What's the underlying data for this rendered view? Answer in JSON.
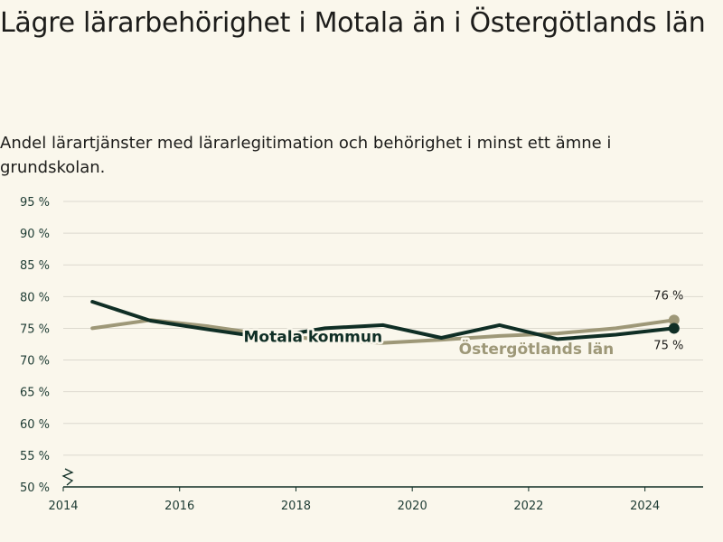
{
  "title": "Lägre lärarbehörighet i Motala än i Östergötlands län",
  "subtitle": "Andel lärartjänster med lärarlegitimation och behörighet i minst ett ämne i grundskolan.",
  "chart_data": {
    "type": "line",
    "ylim": [
      50,
      95
    ],
    "yticks": [
      50,
      55,
      60,
      65,
      70,
      75,
      80,
      85,
      90,
      95
    ],
    "ytick_labels": [
      "50 %",
      "55 %",
      "60 %",
      "65 %",
      "70 %",
      "75 %",
      "80 %",
      "85 %",
      "90 %",
      "95 %"
    ],
    "xlim": [
      2014,
      2025
    ],
    "xticks": [
      2014,
      2016,
      2018,
      2020,
      2022,
      2024
    ],
    "xtick_labels": [
      "2014",
      "2016",
      "2018",
      "2020",
      "2022",
      "2024"
    ],
    "grid": true,
    "axis_break": true,
    "series": [
      {
        "name": "Motala kommun",
        "color": "#0f2e25",
        "x": [
          2014.5,
          2015.5,
          2016.5,
          2017.5,
          2018.5,
          2019.5,
          2020.5,
          2021.5,
          2022.5,
          2023.5,
          2024.5
        ],
        "values": [
          79.2,
          76.2,
          74.8,
          73.5,
          75.0,
          75.5,
          73.5,
          75.5,
          73.3,
          74.0,
          75.0
        ],
        "end_label": "75 %"
      },
      {
        "name": "Östergötlands län",
        "color": "#9e9878",
        "x": [
          2014.5,
          2015.5,
          2016.5,
          2017.5,
          2018.5,
          2019.5,
          2020.5,
          2021.5,
          2022.5,
          2023.5,
          2024.5
        ],
        "values": [
          75.0,
          76.3,
          75.3,
          74.0,
          73.2,
          72.7,
          73.2,
          73.8,
          74.2,
          75.0,
          76.3
        ],
        "end_label": "76 %"
      }
    ]
  }
}
